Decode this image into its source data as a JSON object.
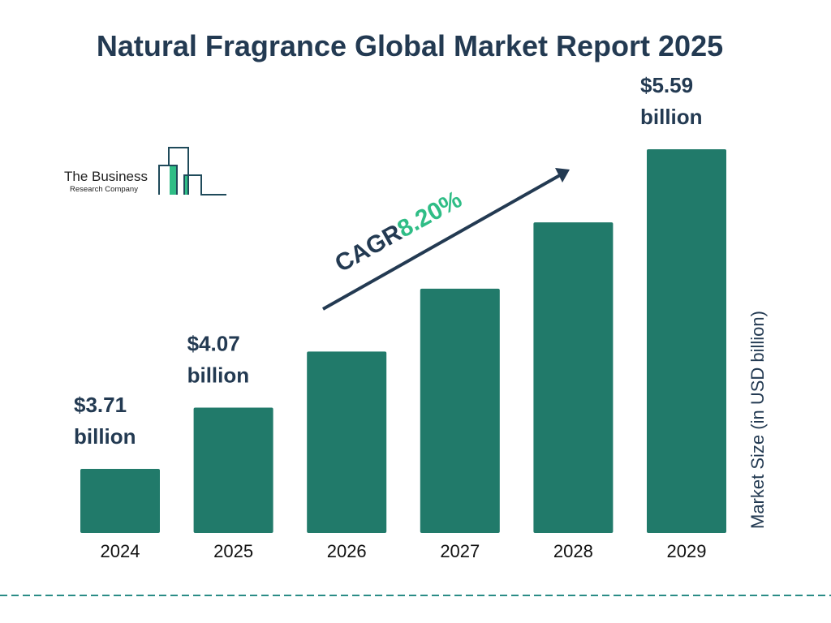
{
  "chart_data": {
    "type": "bar",
    "title": "Natural Fragrance Global Market Report 2025",
    "xlabel": "",
    "ylabel": "Market Size (in USD billion)",
    "categories": [
      "2024",
      "2025",
      "2026",
      "2027",
      "2028",
      "2029"
    ],
    "values": [
      3.71,
      4.07,
      4.4,
      4.77,
      5.16,
      5.59
    ],
    "data_labels": [
      [
        "$3.71",
        "billion"
      ],
      [
        "$4.07",
        "billion"
      ],
      null,
      null,
      null,
      [
        "$5.59",
        "billion"
      ]
    ],
    "annotation": {
      "prefix": "CAGR",
      "value": "8.20%"
    },
    "grid": false,
    "legend": "none",
    "colors": {
      "bar": "#217a6a",
      "text": "#233a52",
      "accent": "#2fbd86",
      "divider": "#2a8c86"
    }
  },
  "logo": {
    "line1": "The Business",
    "line2": "Research Company"
  }
}
